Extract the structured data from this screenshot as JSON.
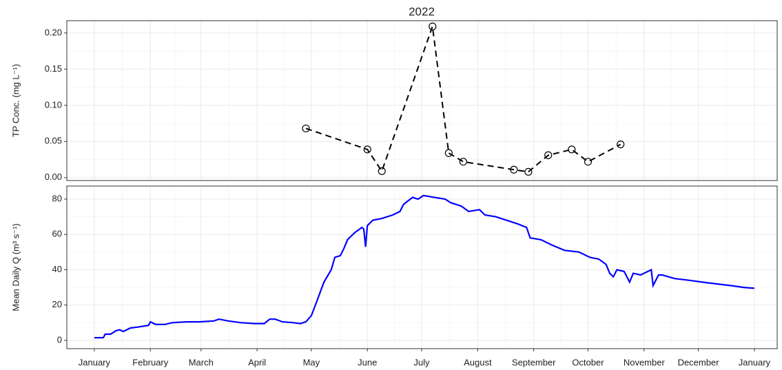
{
  "chart_data": [
    {
      "type": "line",
      "title": "2022",
      "ylabel": "TP Conc. (mg L⁻¹)",
      "color": "#000000",
      "dashed": true,
      "markers": true,
      "grid": true,
      "x": [
        117,
        151,
        159,
        187,
        196,
        204,
        232,
        240,
        251,
        264,
        273,
        291
      ],
      "values": [
        0.068,
        0.039,
        0.009,
        0.209,
        0.034,
        0.022,
        0.011,
        0.008,
        0.031,
        0.039,
        0.022,
        0.046
      ],
      "xlim": [
        -15.2,
        377.6
      ],
      "ylim": [
        -0.004,
        0.217
      ],
      "yticks": [
        {
          "value": 0,
          "label": "0.00"
        },
        {
          "value": 0.05,
          "label": "0.05"
        },
        {
          "value": 0.1,
          "label": "0.10"
        },
        {
          "value": 0.15,
          "label": "0.15"
        },
        {
          "value": 0.2,
          "label": "0.20"
        }
      ]
    },
    {
      "type": "line",
      "ylabel": "Mean Daily Q (m³ s⁻¹)",
      "color": "#0000ff",
      "dashed": false,
      "markers": false,
      "grid": true,
      "x": [
        0,
        5,
        6,
        9,
        12,
        14,
        16,
        20,
        24,
        30,
        31,
        34,
        39,
        43,
        51,
        58,
        66,
        69,
        74,
        81,
        89,
        94,
        97,
        100,
        104,
        110,
        114,
        117,
        120,
        123,
        127,
        131,
        133,
        136,
        138,
        140,
        144,
        148,
        149,
        150,
        151,
        154,
        159,
        165,
        169,
        171,
        176,
        179,
        182,
        188,
        194,
        197,
        203,
        207,
        213,
        216,
        222,
        228,
        234,
        239,
        241,
        247,
        253,
        260,
        268,
        274,
        279,
        283,
        285,
        287,
        289,
        293,
        296,
        298,
        302,
        308,
        309,
        312,
        314,
        321,
        329,
        336,
        344,
        352,
        359,
        365
      ],
      "values": [
        1.5,
        1.5,
        3.5,
        3.5,
        5.5,
        6,
        5,
        7,
        7.5,
        8.5,
        10.5,
        9,
        9,
        10,
        10.5,
        10.5,
        11,
        12,
        11,
        10,
        9.5,
        9.5,
        12,
        12,
        10.5,
        10,
        9.5,
        10.5,
        14,
        22,
        33,
        40,
        47,
        48,
        52,
        57,
        61,
        64,
        63,
        53,
        65,
        68,
        69,
        71,
        73,
        77,
        81,
        80,
        82,
        81,
        80,
        78,
        76,
        73,
        74,
        71,
        70,
        68,
        66,
        64,
        58,
        57,
        54,
        51,
        50,
        47,
        46,
        43,
        38,
        36,
        40,
        39,
        33,
        38,
        37,
        40,
        31,
        37,
        37,
        35,
        34,
        33,
        32,
        31,
        30,
        29.5
      ],
      "xlim": [
        -15.2,
        377.6
      ],
      "ylim": [
        -4.7,
        87.4
      ],
      "yticks": [
        0,
        20,
        40,
        60,
        80
      ],
      "xticks": [
        {
          "value": 0,
          "label": "January"
        },
        {
          "value": 31,
          "label": "February"
        },
        {
          "value": 59,
          "label": "March"
        },
        {
          "value": 90,
          "label": "April"
        },
        {
          "value": 120,
          "label": "May"
        },
        {
          "value": 151,
          "label": "June"
        },
        {
          "value": 181,
          "label": "July"
        },
        {
          "value": 212,
          "label": "August"
        },
        {
          "value": 243,
          "label": "September"
        },
        {
          "value": 273,
          "label": "October"
        },
        {
          "value": 304,
          "label": "November"
        },
        {
          "value": 334,
          "label": "December"
        },
        {
          "value": 365,
          "label": "January"
        }
      ]
    }
  ]
}
